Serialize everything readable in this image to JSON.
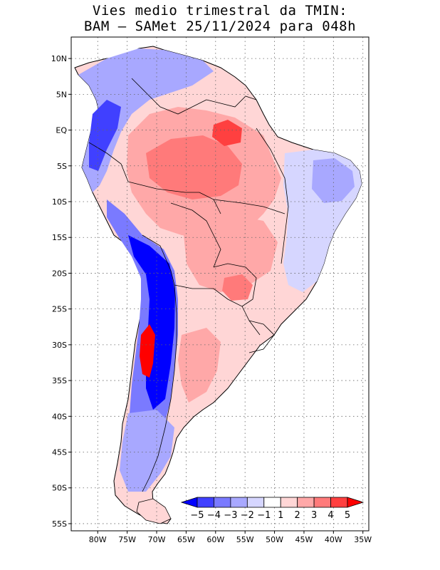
{
  "title": {
    "line1": "Vies medio trimestral da TMIN:",
    "line2": "BAM – SAMet 25/11/2024  para 048h"
  },
  "map": {
    "region": "South America",
    "projection": "cylindrical lat/lon",
    "lon_range": [
      -84.5,
      -34.0
    ],
    "lat_range": [
      -56.0,
      13.0
    ],
    "lat_ticks": [
      {
        "value": 10,
        "label": "10N"
      },
      {
        "value": 5,
        "label": "5N"
      },
      {
        "value": 0,
        "label": "EQ"
      },
      {
        "value": -5,
        "label": "5S"
      },
      {
        "value": -10,
        "label": "10S"
      },
      {
        "value": -15,
        "label": "15S"
      },
      {
        "value": -20,
        "label": "20S"
      },
      {
        "value": -25,
        "label": "25S"
      },
      {
        "value": -30,
        "label": "30S"
      },
      {
        "value": -35,
        "label": "35S"
      },
      {
        "value": -40,
        "label": "40S"
      },
      {
        "value": -45,
        "label": "45S"
      },
      {
        "value": -50,
        "label": "50S"
      },
      {
        "value": -55,
        "label": "55S"
      }
    ],
    "lon_ticks": [
      {
        "value": -80,
        "label": "80W"
      },
      {
        "value": -75,
        "label": "75W"
      },
      {
        "value": -70,
        "label": "70W"
      },
      {
        "value": -65,
        "label": "65W"
      },
      {
        "value": -60,
        "label": "60W"
      },
      {
        "value": -55,
        "label": "55W"
      },
      {
        "value": -50,
        "label": "50W"
      },
      {
        "value": -45,
        "label": "45W"
      },
      {
        "value": -40,
        "label": "40W"
      },
      {
        "value": -35,
        "label": "35W"
      }
    ],
    "gridlines": "dotted"
  },
  "colorbar": {
    "labels": [
      "−5",
      "−4",
      "−3",
      "−2",
      "−1",
      "1",
      "2",
      "3",
      "4",
      "5"
    ],
    "colors": [
      "#0000ff",
      "#4040ff",
      "#7a7aff",
      "#a8a8ff",
      "#d6d6ff",
      "#ffffff",
      "#ffd6d6",
      "#ffa8a8",
      "#ff7a7a",
      "#ff4040",
      "#ff0000"
    ]
  }
}
